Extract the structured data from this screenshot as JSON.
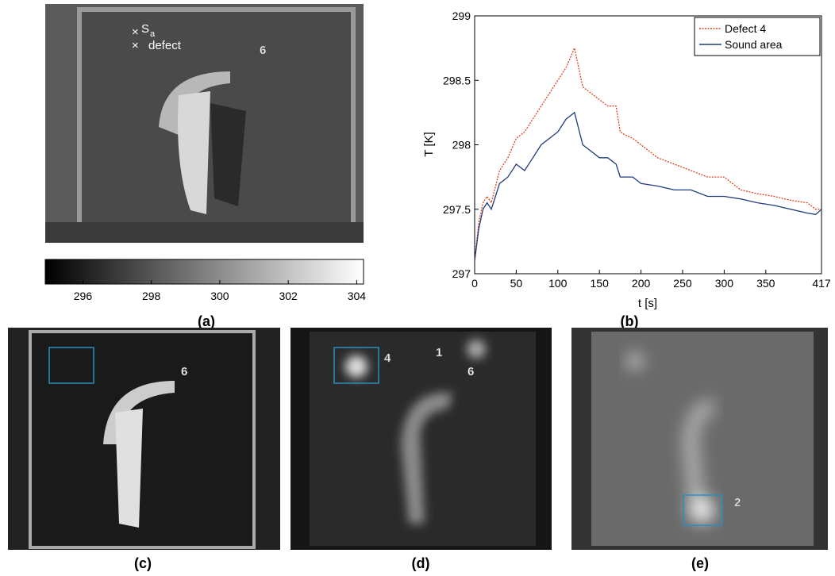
{
  "chart_data": {
    "type": "line",
    "ylabel": "T [K]",
    "xlabel": "t [s]",
    "x": [
      0,
      5,
      10,
      15,
      20,
      30,
      40,
      50,
      60,
      70,
      80,
      90,
      100,
      110,
      120,
      130,
      140,
      150,
      160,
      170,
      175,
      180,
      190,
      200,
      220,
      240,
      260,
      280,
      300,
      320,
      340,
      360,
      380,
      400,
      410,
      417
    ],
    "series": [
      {
        "name": "Defect 4",
        "color": "#e0401e",
        "values": [
          297.1,
          297.4,
          297.55,
          297.6,
          297.55,
          297.8,
          297.9,
          298.05,
          298.1,
          298.2,
          298.3,
          298.4,
          298.5,
          298.6,
          298.75,
          298.45,
          298.4,
          298.35,
          298.3,
          298.3,
          298.1,
          298.08,
          298.05,
          298.0,
          297.9,
          297.85,
          297.8,
          297.75,
          297.75,
          297.65,
          297.62,
          297.6,
          297.57,
          297.55,
          297.5,
          297.5
        ]
      },
      {
        "name": "Sound area",
        "color": "#1f3a7a",
        "values": [
          297.1,
          297.35,
          297.5,
          297.55,
          297.5,
          297.7,
          297.75,
          297.85,
          297.8,
          297.9,
          298.0,
          298.05,
          298.1,
          298.2,
          298.25,
          298.0,
          297.95,
          297.9,
          297.9,
          297.85,
          297.75,
          297.75,
          297.75,
          297.7,
          297.68,
          297.65,
          297.65,
          297.6,
          297.6,
          297.58,
          297.55,
          297.53,
          297.5,
          297.47,
          297.46,
          297.5
        ]
      }
    ],
    "xlim": [
      0,
      417
    ],
    "xticks": [
      0,
      50,
      100,
      150,
      200,
      250,
      300,
      350,
      417
    ],
    "ylim": [
      297,
      299
    ],
    "yticks": [
      297,
      297.5,
      298,
      298.5,
      299
    ],
    "legend": "upper right",
    "grid": false
  },
  "colorbar": {
    "range": [
      294.9,
      304.2
    ],
    "ticks": [
      296,
      298,
      300,
      302,
      304
    ]
  },
  "panels": {
    "a": {
      "label": "(a)",
      "sa": "S",
      "sa_sub": "a",
      "defect": "defect",
      "number": "6"
    },
    "b": {
      "label": "(b)"
    },
    "c": {
      "label": "(c)",
      "number": "6"
    },
    "d": {
      "label": "(d)",
      "numbers": [
        "4",
        "1",
        "6"
      ]
    },
    "e": {
      "label": "(e)",
      "number": "2"
    }
  }
}
